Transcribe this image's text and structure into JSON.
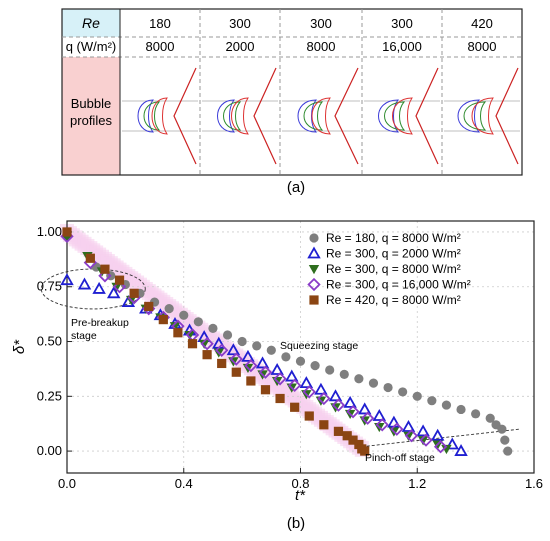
{
  "panel_a": {
    "caption": "(a)",
    "row_header_re": "Re",
    "row_header_q": "q (W/m²)",
    "row_header_profiles": "Bubble profiles",
    "columns": [
      {
        "re": "180",
        "q": "8000"
      },
      {
        "re": "300",
        "q": "2000"
      },
      {
        "re": "300",
        "q": "8000"
      },
      {
        "re": "300",
        "q": "16,000"
      },
      {
        "re": "420",
        "q": "8000"
      }
    ],
    "colors": {
      "re_header_bg": "#d7f1f8",
      "profiles_header_bg": "#f9d0d0",
      "wall": "#cc2222",
      "profile_red": "#dd3333",
      "profile_green": "#2e8b2e",
      "profile_blue": "#3b3bd8"
    }
  },
  "panel_b": {
    "caption": "(b)",
    "annotations": {
      "pre_breakup_1": "Pre-breakup",
      "pre_breakup_2": "stage",
      "squeezing": "Squeezing stage",
      "pinch_off": "Pinch-off stage"
    }
  },
  "chart_data": {
    "type": "scatter",
    "xlabel": "t*",
    "ylabel": "δ*",
    "xlim": [
      0.0,
      1.6
    ],
    "ylim": [
      -0.1,
      1.05
    ],
    "xticks": [
      "0.0",
      "0.4",
      "0.8",
      "1.2",
      "1.6"
    ],
    "yticks": [
      "0.00",
      "0.25",
      "0.50",
      "0.75",
      "1.00"
    ],
    "grid": true,
    "legend_position": "top-right",
    "series": [
      {
        "name": "Re = 180,  q = 8000 W/m²",
        "marker": "circle",
        "color": "#7f7f7f",
        "x": [
          0.1,
          0.15,
          0.2,
          0.25,
          0.3,
          0.35,
          0.4,
          0.45,
          0.5,
          0.55,
          0.6,
          0.65,
          0.7,
          0.75,
          0.8,
          0.85,
          0.9,
          0.95,
          1.0,
          1.05,
          1.1,
          1.15,
          1.2,
          1.25,
          1.3,
          1.35,
          1.4,
          1.45,
          1.47,
          1.49,
          1.5,
          1.51
        ],
        "y": [
          0.84,
          0.8,
          0.76,
          0.72,
          0.68,
          0.65,
          0.62,
          0.59,
          0.56,
          0.53,
          0.5,
          0.48,
          0.46,
          0.43,
          0.41,
          0.39,
          0.37,
          0.35,
          0.33,
          0.31,
          0.29,
          0.27,
          0.25,
          0.23,
          0.21,
          0.19,
          0.17,
          0.15,
          0.12,
          0.1,
          0.05,
          0.0
        ]
      },
      {
        "name": "Re = 300,  q = 2000 W/m²",
        "marker": "triangle-up",
        "color": "#1f1fd1",
        "x": [
          0.0,
          0.06,
          0.11,
          0.16,
          0.21,
          0.27,
          0.32,
          0.37,
          0.42,
          0.47,
          0.52,
          0.57,
          0.62,
          0.67,
          0.72,
          0.77,
          0.82,
          0.87,
          0.92,
          0.97,
          1.02,
          1.07,
          1.12,
          1.17,
          1.22,
          1.27,
          1.32,
          1.35
        ],
        "y": [
          0.78,
          0.76,
          0.74,
          0.72,
          0.68,
          0.65,
          0.62,
          0.58,
          0.55,
          0.52,
          0.49,
          0.46,
          0.43,
          0.4,
          0.37,
          0.34,
          0.31,
          0.28,
          0.25,
          0.22,
          0.19,
          0.16,
          0.13,
          0.11,
          0.09,
          0.07,
          0.03,
          0.0
        ]
      },
      {
        "name": "Re = 300,  q = 8000 W/m²",
        "marker": "triangle-down",
        "color": "#2e6e1e",
        "x": [
          0.0,
          0.07,
          0.12,
          0.17,
          0.22,
          0.27,
          0.32,
          0.37,
          0.42,
          0.47,
          0.52,
          0.57,
          0.62,
          0.67,
          0.72,
          0.77,
          0.82,
          0.87,
          0.92,
          0.97,
          1.02,
          1.07,
          1.12,
          1.17,
          1.22,
          1.27,
          1.3
        ],
        "y": [
          0.97,
          0.89,
          0.82,
          0.75,
          0.69,
          0.65,
          0.61,
          0.57,
          0.53,
          0.49,
          0.45,
          0.41,
          0.38,
          0.35,
          0.32,
          0.29,
          0.26,
          0.23,
          0.2,
          0.17,
          0.14,
          0.11,
          0.09,
          0.07,
          0.05,
          0.03,
          0.01
        ]
      },
      {
        "name": "Re = 300,  q = 16,000 W/m²",
        "marker": "diamond",
        "color": "#8a3cc8",
        "x": [
          0.0,
          0.08,
          0.13,
          0.18,
          0.23,
          0.28,
          0.33,
          0.38,
          0.43,
          0.48,
          0.53,
          0.58,
          0.63,
          0.68,
          0.73,
          0.78,
          0.83,
          0.88,
          0.93,
          0.98,
          1.03,
          1.08,
          1.13,
          1.18,
          1.23,
          1.28
        ],
        "y": [
          0.98,
          0.86,
          0.8,
          0.75,
          0.7,
          0.65,
          0.61,
          0.57,
          0.53,
          0.49,
          0.46,
          0.42,
          0.39,
          0.36,
          0.33,
          0.3,
          0.27,
          0.24,
          0.21,
          0.18,
          0.15,
          0.12,
          0.1,
          0.07,
          0.05,
          0.02
        ]
      },
      {
        "name": "Re = 420,  q = 8000 W/m²",
        "marker": "square",
        "color": "#8b4513",
        "x": [
          0.0,
          0.08,
          0.13,
          0.18,
          0.23,
          0.28,
          0.33,
          0.38,
          0.43,
          0.48,
          0.53,
          0.58,
          0.63,
          0.68,
          0.73,
          0.78,
          0.83,
          0.88,
          0.93,
          0.96,
          0.98,
          1.0,
          1.01,
          1.02
        ],
        "y": [
          1.0,
          0.88,
          0.83,
          0.78,
          0.72,
          0.66,
          0.6,
          0.54,
          0.49,
          0.44,
          0.4,
          0.36,
          0.32,
          0.28,
          0.24,
          0.2,
          0.16,
          0.12,
          0.09,
          0.07,
          0.05,
          0.03,
          0.01,
          0.0
        ]
      }
    ]
  }
}
